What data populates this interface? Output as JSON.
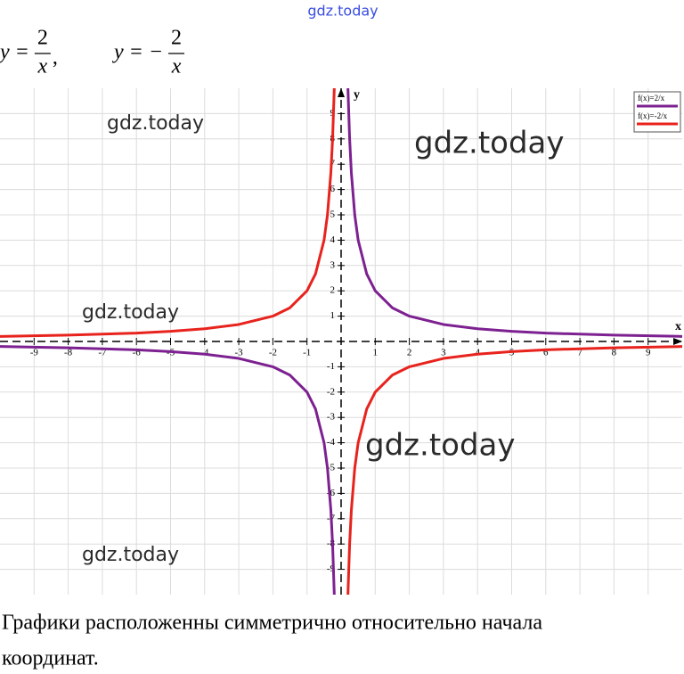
{
  "header": {
    "watermark": "gdz.today"
  },
  "formulas": [
    {
      "lhs": "y =",
      "num": "2",
      "den": "x",
      "after": ","
    },
    {
      "lhs": "y = −",
      "num": "2",
      "den": "x"
    }
  ],
  "chart_data": {
    "type": "line",
    "x_label": "x",
    "y_label": "y",
    "x": [
      -10,
      -8,
      -6,
      -5,
      -4,
      -3,
      -2,
      -1.5,
      -1,
      -0.75,
      -0.5,
      -0.4,
      -0.3,
      -0.25,
      -0.2,
      0,
      0.2,
      0.25,
      0.3,
      0.4,
      0.5,
      0.75,
      1,
      1.5,
      2,
      3,
      4,
      5,
      6,
      8,
      10
    ],
    "series": [
      {
        "name": "f(x)=2/x",
        "color": "#7d2191",
        "values": [
          -0.2,
          -0.25,
          -0.33,
          -0.4,
          -0.5,
          -0.67,
          -1,
          -1.33,
          -2,
          -2.67,
          -4,
          -5,
          -6.67,
          -8,
          -10,
          null,
          10,
          8,
          6.67,
          5,
          4,
          2.67,
          2,
          1.33,
          1,
          0.67,
          0.5,
          0.4,
          0.33,
          0.25,
          0.2
        ]
      },
      {
        "name": "f(x)=-2/x",
        "color": "#e8231d",
        "values": [
          0.2,
          0.25,
          0.33,
          0.4,
          0.5,
          0.67,
          1,
          1.33,
          2,
          2.67,
          4,
          5,
          6.67,
          8,
          10,
          null,
          -10,
          -8,
          -6.67,
          -5,
          -4,
          -2.67,
          -2,
          -1.33,
          -1,
          -0.67,
          -0.5,
          -0.4,
          -0.33,
          -0.25,
          -0.2
        ]
      }
    ],
    "xlim": [
      -10,
      10
    ],
    "ylim": [
      -10,
      10
    ],
    "xticks": [
      -9,
      -8,
      -7,
      -6,
      -5,
      -4,
      -3,
      -2,
      -1,
      1,
      2,
      3,
      4,
      5,
      6,
      7,
      8,
      9
    ],
    "yticks": [
      -9,
      -8,
      -7,
      -6,
      -5,
      -4,
      -3,
      -2,
      -1,
      1,
      2,
      3,
      4,
      5,
      6,
      7,
      8,
      9
    ],
    "grid": true,
    "legend": "top-right"
  },
  "watermarks": [
    "gdz.today",
    "gdz.today",
    "gdz.today",
    "gdz.today",
    "gdz.today"
  ],
  "caption": [
    "Графики расположенны симметрично относительно начала",
    "координат."
  ]
}
